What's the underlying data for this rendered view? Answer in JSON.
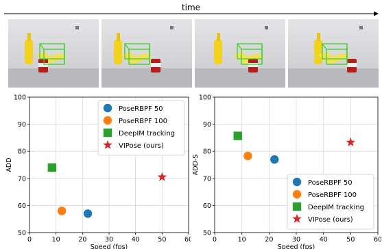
{
  "header": {
    "time_label": "time"
  },
  "frames": [
    {
      "name": "frame-1"
    },
    {
      "name": "frame-2"
    },
    {
      "name": "frame-3"
    },
    {
      "name": "frame-4"
    }
  ],
  "legend_entries": [
    {
      "label": "PoseRBPF 50",
      "color": "#1f77b4",
      "marker": "circle"
    },
    {
      "label": "PoseRBPF 100",
      "color": "#ff7f0e",
      "marker": "circle"
    },
    {
      "label": "DeepIM tracking",
      "color": "#2ca02c",
      "marker": "square"
    },
    {
      "label": "VIPose (ours)",
      "color": "#d62728",
      "marker": "star"
    }
  ],
  "chart_data": [
    {
      "type": "scatter",
      "xlabel": "Speed (fps)",
      "ylabel": "ADD",
      "xlim": [
        0,
        60
      ],
      "ylim": [
        50,
        100
      ],
      "xticks": [
        0,
        10,
        20,
        30,
        40,
        50,
        60
      ],
      "yticks": [
        50,
        60,
        70,
        80,
        90,
        100
      ],
      "grid": true,
      "legend_position": "top-right",
      "series": [
        {
          "name": "PoseRBPF 50",
          "x": 22,
          "y": 57
        },
        {
          "name": "PoseRBPF 100",
          "x": 12.2,
          "y": 58
        },
        {
          "name": "DeepIM tracking",
          "x": 8.5,
          "y": 74
        },
        {
          "name": "VIPose (ours)",
          "x": 50,
          "y": 70.5
        }
      ]
    },
    {
      "type": "scatter",
      "xlabel": "Speed (fps)",
      "ylabel": "ADD-S",
      "xlim": [
        0,
        60
      ],
      "ylim": [
        50,
        100
      ],
      "xticks": [
        0,
        10,
        20,
        30,
        40,
        50,
        60
      ],
      "yticks": [
        50,
        60,
        70,
        80,
        90,
        100
      ],
      "grid": true,
      "legend_position": "bottom-right",
      "series": [
        {
          "name": "PoseRBPF 50",
          "x": 22,
          "y": 77
        },
        {
          "name": "PoseRBPF 100",
          "x": 12.2,
          "y": 78.3
        },
        {
          "name": "DeepIM tracking",
          "x": 8.5,
          "y": 85.7
        },
        {
          "name": "VIPose (ours)",
          "x": 50,
          "y": 83.3
        }
      ]
    }
  ]
}
